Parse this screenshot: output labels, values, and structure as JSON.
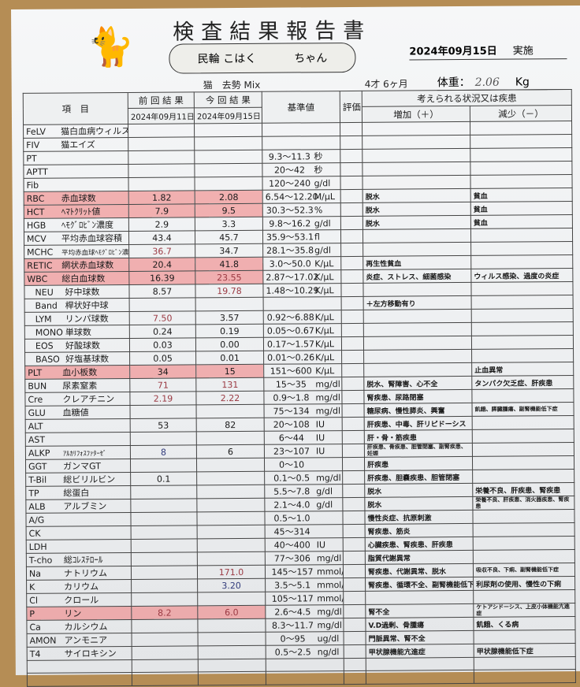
{
  "header": {
    "title": "検査結果報告書",
    "patient_name": "民輪 こはく",
    "honorific": "ちゃん",
    "exam_date": "2024年09月15日",
    "exam_label": "実施",
    "species": "猫",
    "breed": "去勢 Mix",
    "age": "4才 6ヶ月",
    "weight_label": "体重：",
    "weight_value": "2.06",
    "weight_unit": "Kg"
  },
  "columns": {
    "item": "項　目",
    "prev": "前 回 結 果",
    "prev_date": "2024年09月11日",
    "curr": "今 回 結 果",
    "curr_date": "2024年09月15日",
    "ref": "基準値",
    "eval": "評価",
    "conditions": "考えられる状況又は疾患",
    "increase": "増加（＋）",
    "decrease": "減少（－）"
  },
  "rows": [
    {
      "code": "FeLV",
      "name": "猫白血病ウィルス",
      "prev": "",
      "curr": "",
      "ref": "",
      "unit": "",
      "inc": "",
      "dec": ""
    },
    {
      "code": "FIV",
      "name": "猫エイズ",
      "prev": "",
      "curr": "",
      "ref": "",
      "unit": "",
      "inc": "",
      "dec": ""
    },
    {
      "code": "PT",
      "name": "",
      "prev": "",
      "curr": "",
      "ref": "9.3～11.3",
      "unit": "秒",
      "inc": "",
      "dec": ""
    },
    {
      "code": "APTT",
      "name": "",
      "prev": "",
      "curr": "",
      "ref": "20～42",
      "unit": "秒",
      "inc": "",
      "dec": ""
    },
    {
      "code": "Fib",
      "name": "",
      "prev": "",
      "curr": "",
      "ref": "120～240",
      "unit": "g/dl",
      "inc": "",
      "dec": ""
    },
    {
      "code": "RBC",
      "name": "赤血球数",
      "prev": "1.82",
      "curr": "2.08",
      "ref": "6.54～12.20",
      "unit": "M/μL",
      "inc": "脱水",
      "dec": "貧血",
      "highlight": true
    },
    {
      "code": "HCT",
      "name": "ﾍﾏﾄｸﾘｯﾄ値",
      "prev": "7.9",
      "curr": "9.5",
      "ref": "30.3～52.3",
      "unit": "%",
      "inc": "脱水",
      "dec": "貧血",
      "highlight": true
    },
    {
      "code": "HGB",
      "name": "ﾍﾓｸﾞﾛﾋﾞﾝ濃度",
      "prev": "2.9",
      "curr": "3.3",
      "ref": "9.8～16.2",
      "unit": "g/dl",
      "inc": "脱水",
      "dec": "貧血"
    },
    {
      "code": "MCV",
      "name": "平均赤血球容積",
      "prev": "43.4",
      "curr": "45.7",
      "ref": "35.9～53.1",
      "unit": "fl",
      "inc": "",
      "dec": ""
    },
    {
      "code": "MCHC",
      "name": "平均赤血球ﾍﾓｸﾞﾛﾋﾞﾝ濃度",
      "prev": "36.7",
      "curr": "34.7",
      "ref": "28.1～35.8",
      "unit": "g/dl",
      "inc": "",
      "dec": "",
      "prev_flag": true
    },
    {
      "code": "RETIC",
      "name": "網状赤血球数",
      "prev": "20.4",
      "curr": "41.8",
      "ref": "3.0～50.0",
      "unit": "K/μL",
      "inc": "再生性貧血",
      "dec": "",
      "highlight": true
    },
    {
      "code": "WBC",
      "name": "総白血球数",
      "prev": "16.39",
      "curr": "23.55",
      "ref": "2.87～17.02",
      "unit": "K/μL",
      "inc": "炎症、ストレス、細菌感染",
      "dec": "ウィルス感染、過度の炎症",
      "highlight": true,
      "curr_flag": true
    },
    {
      "code": "NEU",
      "name": "好中球数",
      "prev": "8.57",
      "curr": "19.78",
      "ref": "1.48～10.29",
      "unit": "K/μL",
      "inc": "",
      "dec": "",
      "curr_flag": true,
      "indent": true
    },
    {
      "code": "Band",
      "name": "桿状好中球",
      "prev": "",
      "curr": "",
      "ref": "",
      "unit": "",
      "inc": "＋左方移動有り",
      "dec": "",
      "indent": true
    },
    {
      "code": "LYM",
      "name": "リンパ球数",
      "prev": "7.50",
      "curr": "3.57",
      "ref": "0.92～6.88",
      "unit": "K/μL",
      "inc": "",
      "dec": "",
      "prev_flag": true,
      "indent": true
    },
    {
      "code": "MONO",
      "name": "単球数",
      "prev": "0.24",
      "curr": "0.19",
      "ref": "0.05～0.67",
      "unit": "K/μL",
      "inc": "",
      "dec": "",
      "indent": true
    },
    {
      "code": "EOS",
      "name": "好酸球数",
      "prev": "0.03",
      "curr": "0.00",
      "ref": "0.17～1.57",
      "unit": "K/μL",
      "inc": "",
      "dec": "",
      "indent": true
    },
    {
      "code": "BASO",
      "name": "好塩基球数",
      "prev": "0.05",
      "curr": "0.01",
      "ref": "0.01～0.26",
      "unit": "K/μL",
      "inc": "",
      "dec": "",
      "indent": true
    },
    {
      "code": "PLT",
      "name": "血小板数",
      "prev": "34",
      "curr": "15",
      "ref": "151～600",
      "unit": "K/μL",
      "inc": "",
      "dec": "止血異常",
      "highlight": true
    },
    {
      "code": "BUN",
      "name": "尿素窒素",
      "prev": "71",
      "curr": "131",
      "ref": "15～35",
      "unit": "mg/dl",
      "inc": "脱水、腎障害、心不全",
      "dec": "タンパク欠乏症、肝疾患",
      "prev_flag": true,
      "curr_flag": true
    },
    {
      "code": "Cre",
      "name": "クレアチニン",
      "prev": "2.19",
      "curr": "2.22",
      "ref": "0.9～1.8",
      "unit": "mg/dl",
      "inc": "腎疾患、尿路閉塞",
      "dec": "",
      "prev_flag": true,
      "curr_flag": true
    },
    {
      "code": "GLU",
      "name": "血糖値",
      "prev": "",
      "curr": "",
      "ref": "75～134",
      "unit": "mg/dl",
      "inc": "糖尿病、慢性膵炎、興奮",
      "dec": "飢餓、膵臓腫瘍、副腎機能低下症"
    },
    {
      "code": "ALT",
      "name": "",
      "prev": "53",
      "curr": "82",
      "ref": "20～108",
      "unit": "IU",
      "inc": "肝疾患、中毒、肝リピドーシス",
      "dec": ""
    },
    {
      "code": "AST",
      "name": "",
      "prev": "",
      "curr": "",
      "ref": "6～44",
      "unit": "IU",
      "inc": "肝・骨・筋疾患",
      "dec": ""
    },
    {
      "code": "ALKP",
      "name": "ｱﾙｶﾘﾌｫｽﾌｧﾀｰｾﾞ",
      "prev": "8",
      "curr": "6",
      "ref": "23～107",
      "unit": "IU",
      "inc": "肝疾患、骨疾患、胆管閉塞、副腎疾患、妊娠",
      "dec": "",
      "prev_blue": true
    },
    {
      "code": "GGT",
      "name": "ガンマGT",
      "prev": "",
      "curr": "",
      "ref": "0～10",
      "unit": "",
      "inc": "肝疾患",
      "dec": ""
    },
    {
      "code": "T-Bil",
      "name": "総ビリルビン",
      "prev": "0.1",
      "curr": "",
      "ref": "0.1～0.5",
      "unit": "mg/dl",
      "inc": "肝疾患、胆嚢疾患、胆管閉塞",
      "dec": ""
    },
    {
      "code": "TP",
      "name": "総蛋白",
      "prev": "",
      "curr": "",
      "ref": "5.5～7.8",
      "unit": "g/dl",
      "inc": "脱水",
      "dec": "栄養不良、肝疾患、腎疾患"
    },
    {
      "code": "ALB",
      "name": "アルブミン",
      "prev": "",
      "curr": "",
      "ref": "2.1～4.0",
      "unit": "g/dl",
      "inc": "脱水",
      "dec": "栄養不良、肝疾患、消火器疾患、腎疾患"
    },
    {
      "code": "A/G",
      "name": "",
      "prev": "",
      "curr": "",
      "ref": "0.5～1.0",
      "unit": "",
      "inc": "慢性炎症、抗原刺激",
      "dec": ""
    },
    {
      "code": "CK",
      "name": "",
      "prev": "",
      "curr": "",
      "ref": "45～314",
      "unit": "",
      "inc": "腎疾患、筋炎",
      "dec": ""
    },
    {
      "code": "LDH",
      "name": "",
      "prev": "",
      "curr": "",
      "ref": "40～400",
      "unit": "IU",
      "inc": "心臓疾患、腎疾患、肝疾患",
      "dec": ""
    },
    {
      "code": "T-cho",
      "name": "総ｺﾚｽﾃﾛｰﾙ",
      "prev": "",
      "curr": "",
      "ref": "77～306",
      "unit": "mg/dl",
      "inc": "脂質代謝異常",
      "dec": ""
    },
    {
      "code": "Na",
      "name": "ナトリウム",
      "prev": "",
      "curr": "171.0",
      "ref": "145～157",
      "unit": "mmol/l",
      "inc": "腎疾患、代謝異常、脱水",
      "dec": "吸収不良、下痢、副腎機能低下症",
      "curr_flag": true
    },
    {
      "code": "K",
      "name": "カリウム",
      "prev": "",
      "curr": "3.20",
      "ref": "3.5～5.1",
      "unit": "mmol/l",
      "inc": "腎疾患、循環不全、副腎機能低下症",
      "dec": "利尿剤の使用、慢性の下痢",
      "curr_blue": true
    },
    {
      "code": "Cl",
      "name": "クロール",
      "prev": "",
      "curr": "",
      "ref": "105～117",
      "unit": "mmol/l",
      "inc": "",
      "dec": ""
    },
    {
      "code": "P",
      "name": "リン",
      "prev": "8.2",
      "curr": "6.0",
      "ref": "2.6～4.5",
      "unit": "mg/dl",
      "inc": "腎不全",
      "dec": "ケトアシドーシス、上皮小体機能亢進症",
      "highlight": true,
      "prev_flag": true,
      "curr_flag": true
    },
    {
      "code": "Ca",
      "name": "カルシウム",
      "prev": "",
      "curr": "",
      "ref": "8.3～11.7",
      "unit": "mg/dl",
      "inc": "V.D過剰、骨腫瘍",
      "dec": "飢餓、くる病"
    },
    {
      "code": "AMON",
      "name": "アンモニア",
      "prev": "",
      "curr": "",
      "ref": "0～95",
      "unit": "ug/dl",
      "inc": "門脈異常、腎不全",
      "dec": ""
    },
    {
      "code": "T4",
      "name": "サイロキシン",
      "prev": "",
      "curr": "",
      "ref": "0.5～2.5",
      "unit": "ng/dl",
      "inc": "甲状腺機能亢進症",
      "dec": "甲状腺機能低下症"
    }
  ],
  "colors": {
    "highlight": "#f07878",
    "flag": "#9b3a43",
    "wood": "#b58d55"
  }
}
